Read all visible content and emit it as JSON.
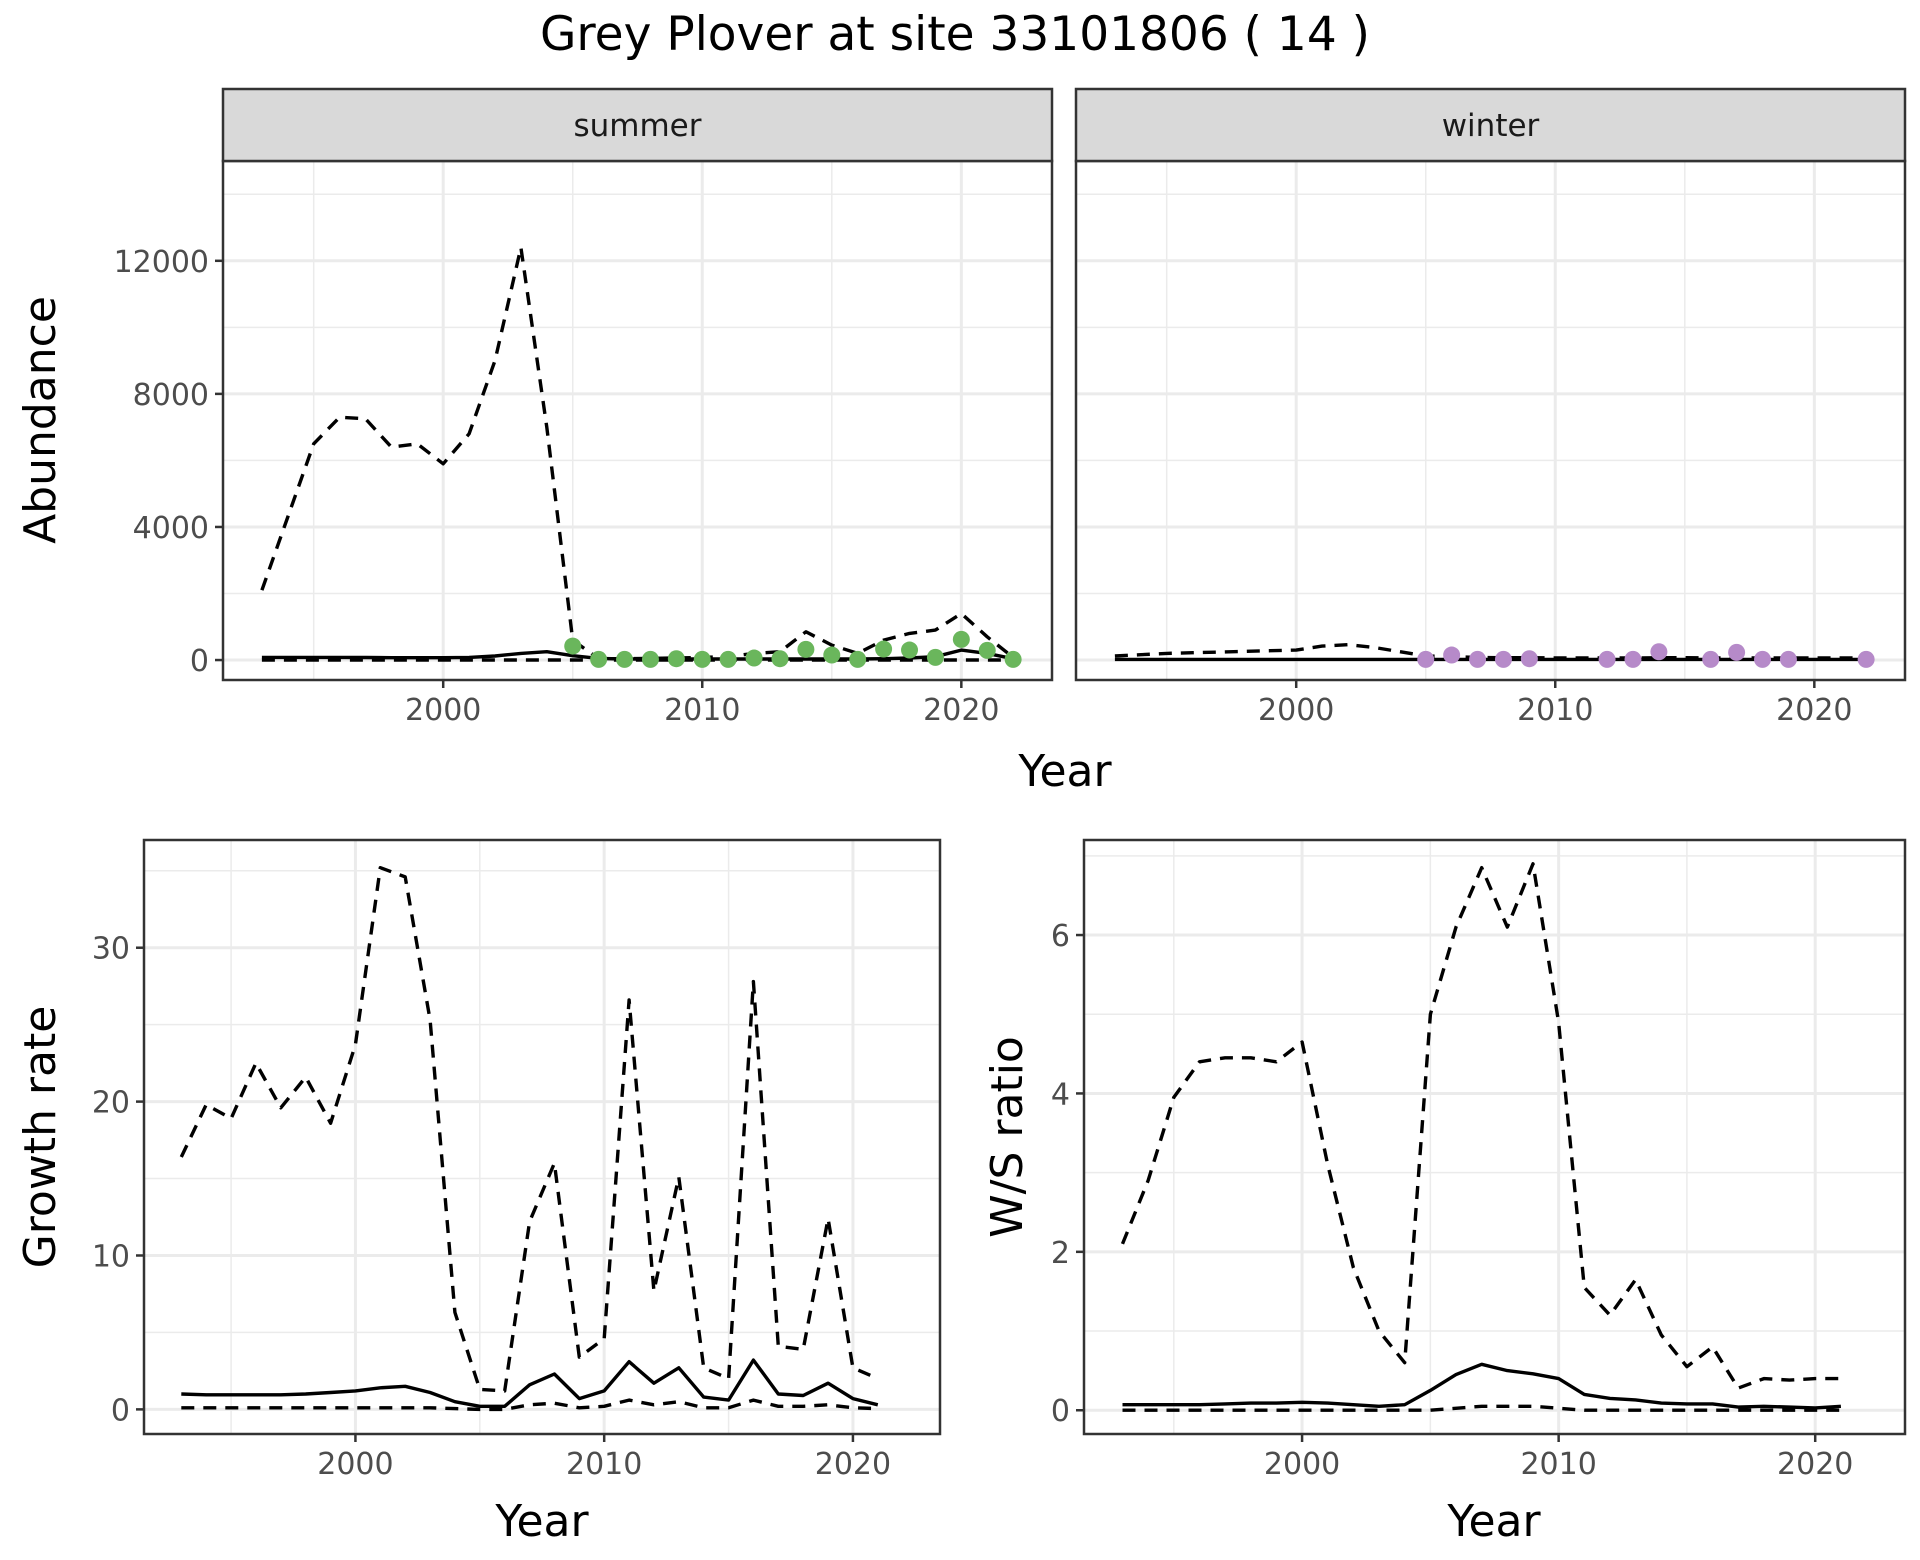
{
  "title": "Grey Plover at site 33101806 ( 14 )",
  "colors": {
    "summer_points": "#6ab65c",
    "winter_points": "#b68ac9",
    "line": "#000000",
    "strip_fill": "#d9d9d9",
    "grid": "#ebebeb"
  },
  "chart_data": [
    {
      "type": "line",
      "panel": "summer",
      "strip_label": "summer",
      "ylabel": "Abundance",
      "xlabel": "Year",
      "xlim": [
        1991.5,
        2023.5
      ],
      "ylim": [
        -600,
        15000
      ],
      "x_ticks": [
        2000,
        2010,
        2020
      ],
      "y_ticks": [
        0,
        4000,
        8000,
        12000
      ],
      "grid": true,
      "series": [
        {
          "style": "solid",
          "x": [
            1993,
            1994,
            1995,
            1996,
            1997,
            1998,
            1999,
            2000,
            2001,
            2002,
            2003,
            2004,
            2005,
            2006,
            2007,
            2008,
            2009,
            2010,
            2011,
            2012,
            2013,
            2014,
            2015,
            2016,
            2017,
            2018,
            2019,
            2020,
            2021,
            2022
          ],
          "y": [
            80,
            80,
            80,
            80,
            75,
            70,
            70,
            70,
            80,
            120,
            200,
            250,
            130,
            50,
            30,
            30,
            30,
            30,
            30,
            30,
            30,
            30,
            30,
            30,
            40,
            60,
            100,
            300,
            200,
            40
          ]
        },
        {
          "style": "dashed",
          "x": [
            1993,
            1994,
            1995,
            1996,
            1997,
            1998,
            1999,
            2000,
            2001,
            2002,
            2003,
            2004,
            2005,
            2006,
            2007,
            2008,
            2009,
            2010,
            2011,
            2012,
            2013,
            2014,
            2015,
            2016,
            2017,
            2018,
            2019,
            2020,
            2021,
            2022
          ],
          "y": [
            2100,
            4300,
            6500,
            7300,
            7250,
            6400,
            6500,
            5900,
            6800,
            9000,
            12400,
            7000,
            600,
            40,
            40,
            50,
            60,
            80,
            100,
            200,
            250,
            850,
            450,
            200,
            600,
            800,
            900,
            1400,
            700,
            80
          ]
        },
        {
          "style": "dashed",
          "x": [
            1993,
            1995,
            1997,
            1999,
            2001,
            2003,
            2005,
            2007,
            2009,
            2011,
            2013,
            2015,
            2017,
            2019,
            2021,
            2022
          ],
          "y": [
            0,
            0,
            0,
            0,
            0,
            0,
            0,
            0,
            0,
            0,
            0,
            0,
            0,
            0,
            0,
            0
          ]
        }
      ],
      "points": {
        "x": [
          2005,
          2006,
          2007,
          2008,
          2009,
          2010,
          2011,
          2012,
          2013,
          2014,
          2015,
          2016,
          2017,
          2018,
          2019,
          2020,
          2021,
          2022
        ],
        "y": [
          420,
          20,
          20,
          20,
          40,
          20,
          20,
          60,
          40,
          320,
          150,
          20,
          330,
          300,
          80,
          620,
          290,
          20
        ]
      }
    },
    {
      "type": "line",
      "panel": "winter",
      "strip_label": "winter",
      "xlabel": "Year",
      "xlim": [
        1991.5,
        2023.5
      ],
      "ylim": [
        -600,
        15000
      ],
      "x_ticks": [
        2000,
        2010,
        2020
      ],
      "y_ticks": [
        0,
        4000,
        8000,
        12000
      ],
      "grid": true,
      "series": [
        {
          "style": "solid",
          "x": [
            1993,
            1996,
            1999,
            2002,
            2005,
            2008,
            2011,
            2014,
            2017,
            2020,
            2022
          ],
          "y": [
            20,
            20,
            20,
            20,
            20,
            20,
            20,
            20,
            20,
            20,
            20
          ]
        },
        {
          "style": "dashed",
          "x": [
            1993,
            1994,
            1995,
            1996,
            1997,
            1998,
            1999,
            2000,
            2001,
            2002,
            2003,
            2004,
            2005,
            2006,
            2007,
            2008,
            2009,
            2010,
            2011,
            2012,
            2013,
            2014,
            2015,
            2016,
            2017,
            2018,
            2019,
            2020,
            2021,
            2022
          ],
          "y": [
            120,
            160,
            200,
            220,
            240,
            260,
            280,
            300,
            420,
            460,
            380,
            250,
            120,
            100,
            80,
            70,
            70,
            60,
            60,
            60,
            60,
            70,
            70,
            60,
            60,
            60,
            60,
            60,
            60,
            60
          ]
        }
      ],
      "points": {
        "x": [
          2005,
          2006,
          2007,
          2008,
          2009,
          2012,
          2013,
          2014,
          2016,
          2017,
          2018,
          2019,
          2022
        ],
        "y": [
          20,
          150,
          20,
          20,
          40,
          20,
          20,
          250,
          20,
          230,
          20,
          20,
          20
        ]
      }
    },
    {
      "type": "line",
      "panel": "growth",
      "xlabel": "Year",
      "ylabel": "Growth rate",
      "xlim": [
        1991.5,
        2023.5
      ],
      "ylim": [
        -1.6,
        37.0
      ],
      "x_ticks": [
        2000,
        2010,
        2020
      ],
      "y_ticks": [
        0,
        10,
        20,
        30
      ],
      "grid": true,
      "series": [
        {
          "style": "solid",
          "x": [
            1993,
            1994,
            1995,
            1996,
            1997,
            1998,
            1999,
            2000,
            2001,
            2002,
            2003,
            2004,
            2005,
            2006,
            2007,
            2008,
            2009,
            2010,
            2011,
            2012,
            2013,
            2014,
            2015,
            2016,
            2017,
            2018,
            2019,
            2020,
            2021
          ],
          "y": [
            1.0,
            0.95,
            0.95,
            0.95,
            0.95,
            1.0,
            1.1,
            1.2,
            1.4,
            1.5,
            1.1,
            0.5,
            0.2,
            0.2,
            1.6,
            2.3,
            0.7,
            1.2,
            3.1,
            1.7,
            2.7,
            0.8,
            0.6,
            3.2,
            1.0,
            0.9,
            1.7,
            0.7,
            0.3
          ]
        },
        {
          "style": "dashed",
          "x": [
            1993,
            1994,
            1995,
            1996,
            1997,
            1998,
            1999,
            2000,
            2001,
            2002,
            2003,
            2004,
            2005,
            2006,
            2007,
            2008,
            2009,
            2010,
            2011,
            2012,
            2013,
            2014,
            2015,
            2016,
            2017,
            2018,
            2019,
            2020,
            2021
          ],
          "y": [
            16.4,
            19.8,
            18.9,
            22.5,
            19.6,
            21.6,
            18.6,
            23.7,
            35.2,
            34.6,
            25.3,
            6.3,
            1.3,
            1.2,
            12.2,
            16.0,
            3.4,
            4.6,
            26.6,
            7.7,
            15.1,
            2.7,
            2.0,
            27.8,
            4.1,
            3.9,
            12.4,
            2.7,
            2.0
          ]
        },
        {
          "style": "dashed",
          "x": [
            1993,
            1994,
            1995,
            1996,
            1997,
            1998,
            1999,
            2000,
            2001,
            2002,
            2003,
            2004,
            2005,
            2006,
            2007,
            2008,
            2009,
            2010,
            2011,
            2012,
            2013,
            2014,
            2015,
            2016,
            2017,
            2018,
            2019,
            2020,
            2021
          ],
          "y": [
            0.1,
            0.1,
            0.1,
            0.1,
            0.1,
            0.1,
            0.1,
            0.1,
            0.1,
            0.1,
            0.1,
            0.05,
            0.0,
            0.0,
            0.3,
            0.4,
            0.1,
            0.2,
            0.6,
            0.3,
            0.5,
            0.1,
            0.1,
            0.6,
            0.2,
            0.2,
            0.3,
            0.1,
            0.05
          ]
        }
      ]
    },
    {
      "type": "line",
      "panel": "ratio",
      "xlabel": "Year",
      "ylabel": "W/S ratio",
      "xlim": [
        1991.5,
        2023.5
      ],
      "ylim": [
        -0.3,
        7.2
      ],
      "x_ticks": [
        2000,
        2010,
        2020
      ],
      "y_ticks": [
        0,
        2,
        4,
        6
      ],
      "grid": true,
      "series": [
        {
          "style": "solid",
          "x": [
            1993,
            1994,
            1995,
            1996,
            1997,
            1998,
            1999,
            2000,
            2001,
            2002,
            2003,
            2004,
            2005,
            2006,
            2007,
            2008,
            2009,
            2010,
            2011,
            2012,
            2013,
            2014,
            2015,
            2016,
            2017,
            2018,
            2019,
            2020,
            2021
          ],
          "y": [
            0.07,
            0.07,
            0.07,
            0.07,
            0.08,
            0.09,
            0.09,
            0.1,
            0.09,
            0.07,
            0.05,
            0.07,
            0.25,
            0.45,
            0.58,
            0.5,
            0.46,
            0.4,
            0.2,
            0.15,
            0.13,
            0.09,
            0.08,
            0.08,
            0.04,
            0.05,
            0.04,
            0.03,
            0.05
          ]
        },
        {
          "style": "dashed",
          "x": [
            1993,
            1994,
            1995,
            1996,
            1997,
            1998,
            1999,
            2000,
            2001,
            2002,
            2003,
            2004,
            2005,
            2006,
            2007,
            2008,
            2009,
            2010,
            2011,
            2012,
            2013,
            2014,
            2015,
            2016,
            2017,
            2018,
            2019,
            2020,
            2021
          ],
          "y": [
            2.1,
            2.9,
            3.95,
            4.4,
            4.45,
            4.45,
            4.4,
            4.65,
            3.1,
            1.8,
            1.0,
            0.6,
            5.0,
            6.1,
            6.85,
            6.1,
            6.9,
            4.9,
            1.55,
            1.2,
            1.65,
            0.95,
            0.55,
            0.8,
            0.28,
            0.4,
            0.38,
            0.4,
            0.4
          ]
        },
        {
          "style": "dashed",
          "x": [
            1993,
            1995,
            1997,
            1999,
            2001,
            2003,
            2005,
            2007,
            2009,
            2011,
            2013,
            2015,
            2017,
            2019,
            2021
          ],
          "y": [
            0.0,
            0.0,
            0.0,
            0.0,
            0.0,
            0.0,
            0.0,
            0.05,
            0.05,
            0.0,
            0.0,
            0.0,
            0.0,
            0.0,
            0.0
          ]
        }
      ]
    }
  ]
}
